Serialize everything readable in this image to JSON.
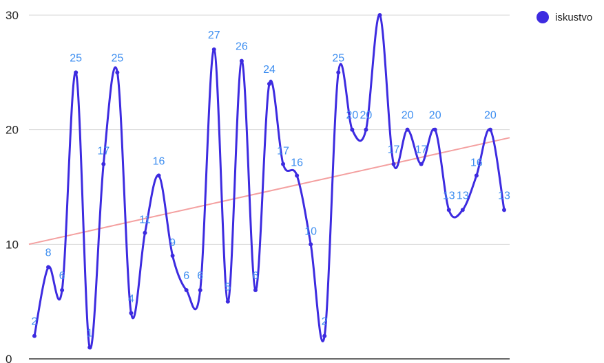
{
  "chart_data": {
    "type": "line",
    "ylim": [
      0,
      30
    ],
    "yticks": [
      0,
      10,
      20,
      30
    ],
    "grid": true,
    "legend_position": "top-right",
    "series": [
      {
        "name": "iskustvo",
        "color": "#3d2be0",
        "values": [
          2,
          8,
          6,
          25,
          1,
          17,
          25,
          4,
          11,
          16,
          9,
          6,
          6,
          27,
          5,
          26,
          6,
          24,
          17,
          16,
          10,
          2,
          25,
          20,
          20,
          30,
          17,
          20,
          17,
          20,
          13,
          13,
          16,
          20,
          13
        ],
        "labels": [
          "2",
          "8",
          "6",
          "25",
          "1",
          "17",
          "25",
          "4",
          "11",
          "16",
          "9",
          "6",
          "6",
          "27",
          "5",
          "26",
          "6",
          "24",
          "17",
          "16",
          "10",
          "2",
          "25",
          "20",
          "20",
          "",
          "17",
          "20",
          "17",
          "20",
          "13",
          "13",
          "16",
          "20",
          "13"
        ]
      }
    ],
    "trendline": {
      "color": "#f4a0a0",
      "start": 10,
      "end": 19.3
    }
  }
}
